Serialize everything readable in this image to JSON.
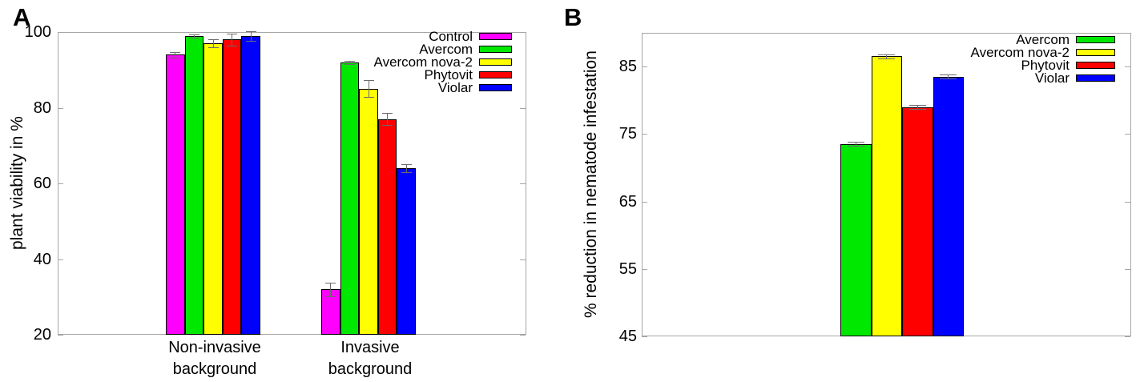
{
  "figure_title": "",
  "accent_colors": {
    "control": "#ff00ff",
    "avercom": "#00e800",
    "avercom_nova_2": "#ffff00",
    "phytovit": "#ff0000",
    "violar": "#0000ff"
  },
  "chart_data": [
    {
      "type": "bar",
      "panel_letter": "A",
      "ylabel": "plant viability in %",
      "xlabel": "",
      "ylim": [
        20,
        100
      ],
      "yticks": [
        20,
        40,
        60,
        80,
        100
      ],
      "grid": false,
      "legend_position": "top-right-inside",
      "categories": [
        "Non-invasive background",
        "Invasive background"
      ],
      "category_lines": [
        [
          "Non-invasive",
          "background"
        ],
        [
          "Invasive",
          "background"
        ]
      ],
      "series": [
        {
          "name": "Control",
          "color": "#ff00ff",
          "values": [
            94,
            32
          ],
          "errors": [
            0.7,
            1.8
          ]
        },
        {
          "name": "Avercom",
          "color": "#00e800",
          "values": [
            99,
            92
          ],
          "errors": [
            0.4,
            0.4
          ]
        },
        {
          "name": "Avercom nova-2",
          "color": "#ffff00",
          "values": [
            97,
            85
          ],
          "errors": [
            1.0,
            2.2
          ]
        },
        {
          "name": "Phytovit",
          "color": "#ff0000",
          "values": [
            98,
            77
          ],
          "errors": [
            1.6,
            1.6
          ]
        },
        {
          "name": "Violar",
          "color": "#0000ff",
          "values": [
            99,
            64
          ],
          "errors": [
            1.3,
            1.0
          ]
        }
      ]
    },
    {
      "type": "bar",
      "panel_letter": "B",
      "ylabel": "% reduction in nematode infestation",
      "xlabel": "",
      "ylim": [
        45,
        90
      ],
      "yticks": [
        45,
        55,
        65,
        75,
        85
      ],
      "grid": false,
      "legend_position": "top-right-inside",
      "categories": [
        ""
      ],
      "category_lines": [],
      "series": [
        {
          "name": "Avercom",
          "color": "#00e800",
          "values": [
            73.5
          ],
          "errors": [
            0.3
          ]
        },
        {
          "name": "Avercom nova-2",
          "color": "#ffff00",
          "values": [
            86.5
          ],
          "errors": [
            0.3
          ]
        },
        {
          "name": "Phytovit",
          "color": "#ff0000",
          "values": [
            79
          ],
          "errors": [
            0.3
          ]
        },
        {
          "name": "Violar",
          "color": "#0000ff",
          "values": [
            83.5
          ],
          "errors": [
            0.3
          ]
        }
      ]
    }
  ]
}
